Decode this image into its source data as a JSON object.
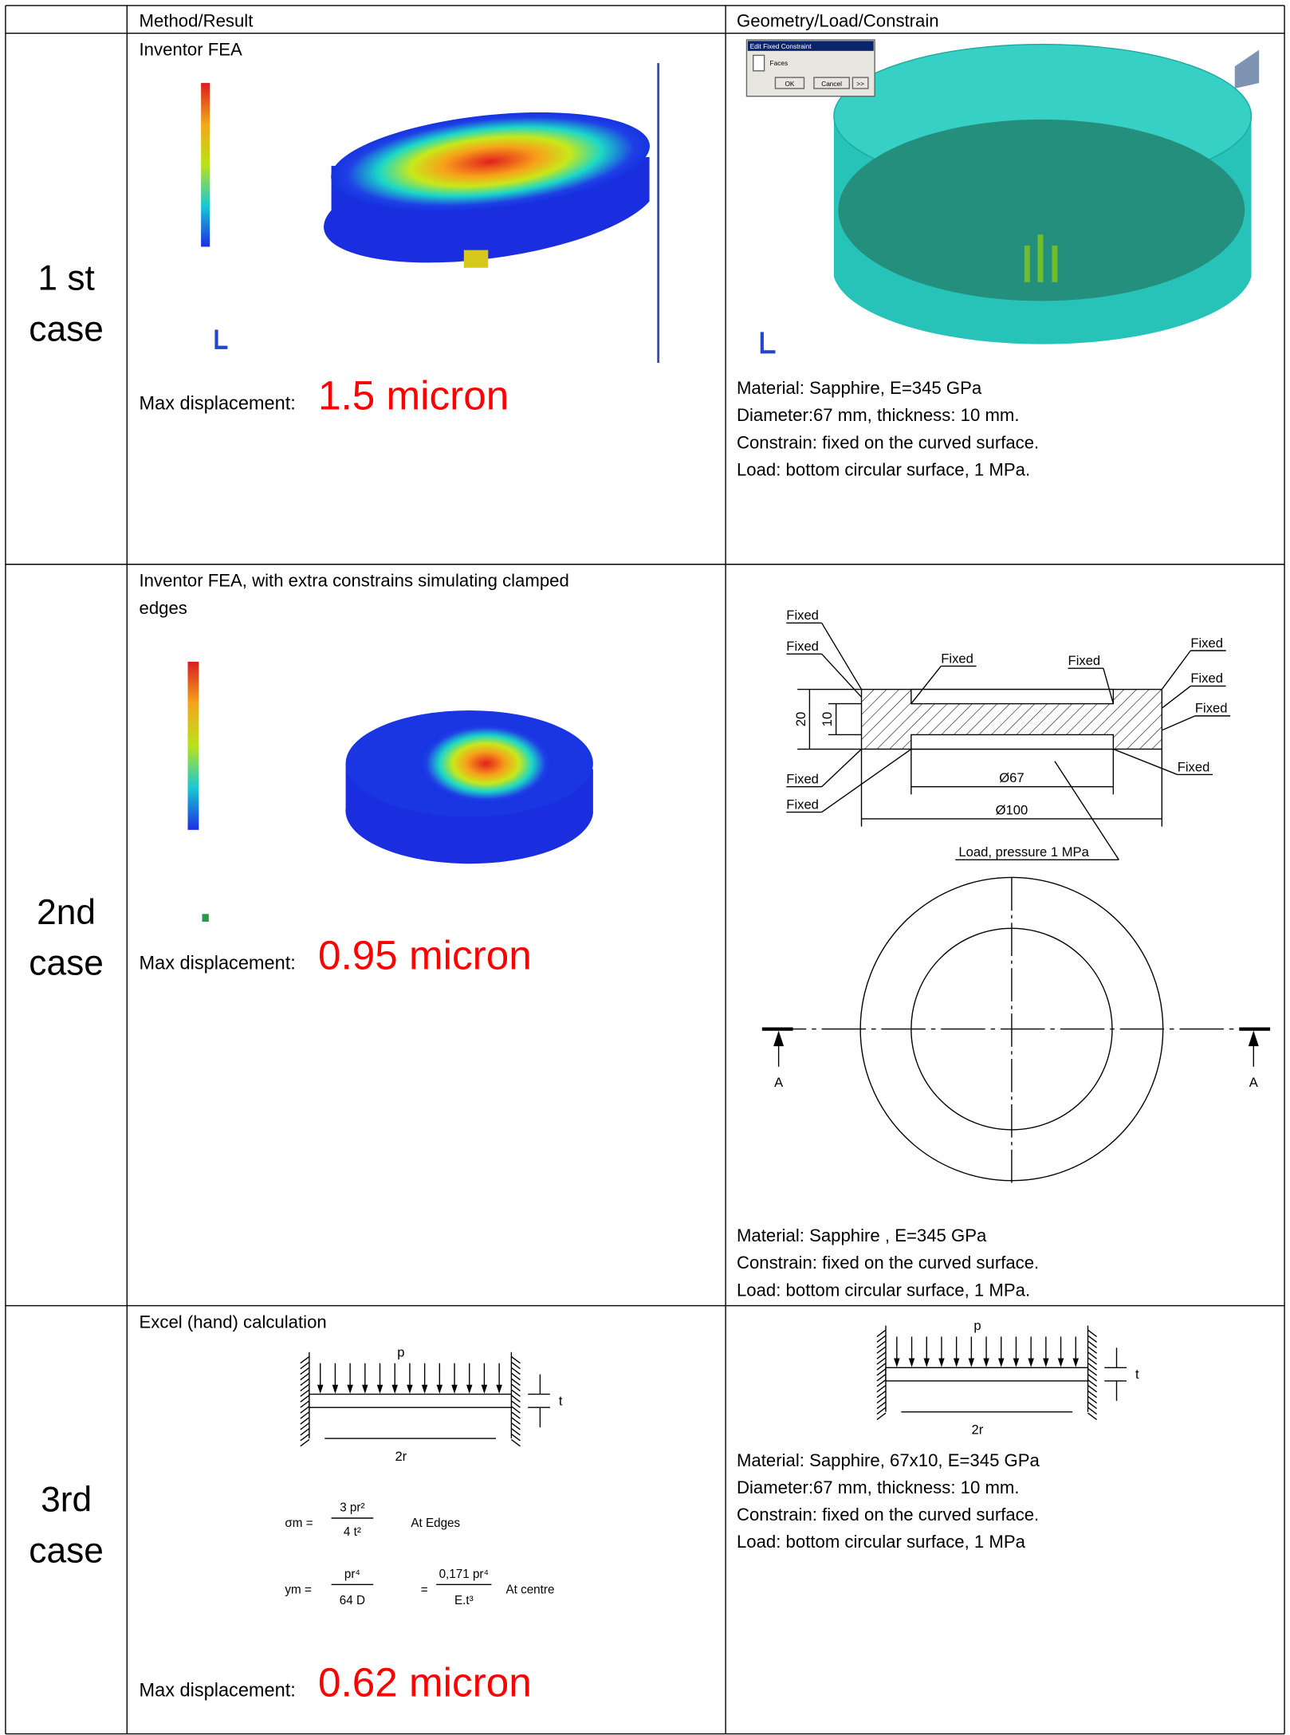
{
  "header": {
    "method": "Method/Result",
    "geometry": "Geometry/Load/Constrain"
  },
  "rows": [
    {
      "case": [
        "1 st",
        "case"
      ],
      "method": [
        "Inventor FEA"
      ],
      "result_label": "Max displacement:",
      "result_value": "1.5 micron",
      "geometry": [
        "Material: Sapphire, E=345 GPa",
        "Diameter:67 mm, thickness: 10 mm.",
        "Constrain: fixed on the curved surface.",
        "Load: bottom circular surface, 1 MPa."
      ]
    },
    {
      "case": [
        "2nd",
        "case"
      ],
      "method": [
        "Inventor FEA, with extra constrains simulating clamped",
        "edges"
      ],
      "result_label": "Max displacement:",
      "result_value": "0.95 micron",
      "geometry": [
        "Material: Sapphire , E=345 GPa",
        "Constrain: fixed on the curved surface.",
        "Load: bottom circular surface, 1 MPa."
      ]
    },
    {
      "case": [
        "3rd",
        "case"
      ],
      "method": [
        "Excel (hand) calculation"
      ],
      "result_label": "Max displacement:",
      "result_value": "0.62 micron",
      "geometry": [
        "Material: Sapphire, 67x10, E=345 GPa",
        "Diameter:67 mm, thickness: 10 mm.",
        "Constrain: fixed on the curved surface.",
        "Load: bottom circular surface, 1 MPa"
      ]
    }
  ],
  "dialog": {
    "title": "Edit Fixed Constraint",
    "faces": "Faces",
    "ok": "OK",
    "cancel": "Cancel",
    "more": ">>"
  },
  "drawing": {
    "fixed": [
      "Fixed",
      "Fixed",
      "Fixed",
      "Fixed",
      "Fixed",
      "Fixed",
      "Fixed",
      "Fixed",
      "Fixed",
      "Fixed"
    ],
    "height_outer": "20",
    "height_inner": "10",
    "dia_inner": "Ø67",
    "dia_outer": "Ø100",
    "load": "Load, pressure 1 MPa",
    "section": [
      "A",
      "A"
    ]
  },
  "beam": {
    "p": "p",
    "t": "t",
    "span": "2r"
  },
  "formulas": {
    "sigma": {
      "lhs": "σm =",
      "num": "3 pr²",
      "den": "4 t²",
      "note": "At Edges"
    },
    "deflection": {
      "lhs": "ym =",
      "num": "pr⁴",
      "den": "64 D",
      "eq": "=",
      "num2": "0,171 pr⁴",
      "den2": "E.t³",
      "note": "At centre"
    }
  }
}
